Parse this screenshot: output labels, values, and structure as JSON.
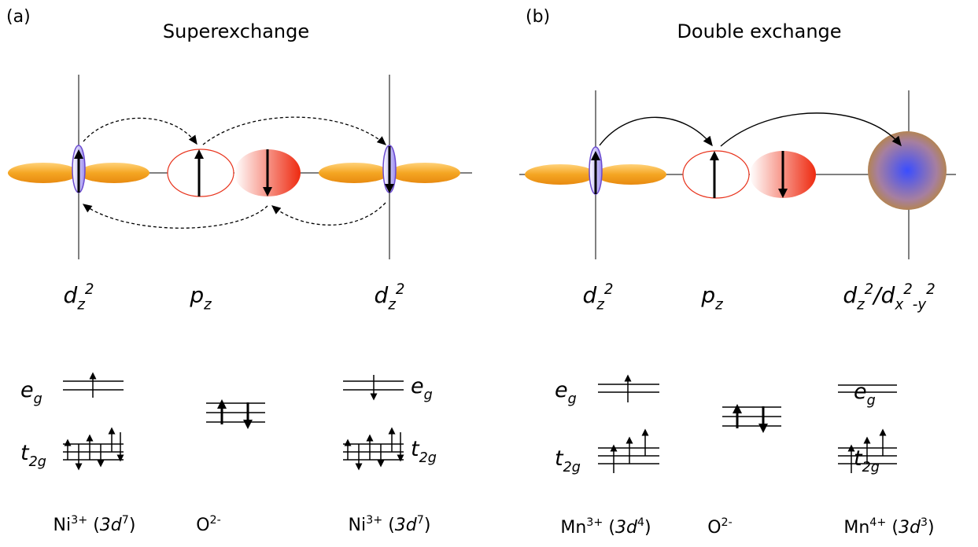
{
  "panels": [
    {
      "label": "(a)",
      "title": "Superexchange",
      "orbital_labels": [
        [
          {
            "text": "d"
          },
          {
            "sub": "z"
          },
          {
            "sup": "2"
          }
        ],
        [
          {
            "text": "p"
          },
          {
            "sub": "z"
          }
        ],
        [
          {
            "text": "d"
          },
          {
            "sub": "z"
          },
          {
            "sup": "2"
          }
        ]
      ],
      "level_labels": [
        [
          {
            "text": "e"
          },
          {
            "sub": "g"
          }
        ],
        [
          {
            "text": "t"
          },
          {
            "sub": "2g"
          }
        ],
        [
          {
            "text": "e"
          },
          {
            "sub": "g"
          }
        ],
        [
          {
            "text": "t"
          },
          {
            "sub": "2g"
          }
        ]
      ],
      "ion_labels": [
        [
          {
            "text": "Ni"
          },
          {
            "sup": "3+"
          },
          {
            "text": " ("
          },
          {
            "italic": "3d"
          },
          {
            "sup": "7"
          },
          {
            "text": ")"
          }
        ],
        [
          {
            "text": "O"
          },
          {
            "sup": "2-"
          }
        ],
        [
          {
            "text": "Ni"
          },
          {
            "sup": "3+"
          },
          {
            "text": " ("
          },
          {
            "italic": "3d"
          },
          {
            "sup": "7"
          },
          {
            "text": ")"
          }
        ]
      ]
    },
    {
      "label": "(b)",
      "title": "Double exchange",
      "orbital_labels": [
        [
          {
            "text": "d"
          },
          {
            "sub": "z"
          },
          {
            "sup": "2"
          }
        ],
        [
          {
            "text": "p"
          },
          {
            "sub": "z"
          }
        ],
        [
          {
            "text": "d"
          },
          {
            "sub": "z"
          },
          {
            "sup": "2"
          },
          {
            "text": "/d"
          },
          {
            "sub": "x"
          },
          {
            "sup": "2"
          },
          {
            "sub": "-y"
          },
          {
            "sup": "2"
          }
        ]
      ],
      "level_labels": [
        [
          {
            "text": "e"
          },
          {
            "sub": "g"
          }
        ],
        [
          {
            "text": "t"
          },
          {
            "sub": "2g"
          }
        ],
        [
          {
            "text": "e"
          },
          {
            "sub": "g"
          }
        ],
        [
          {
            "text": "t"
          },
          {
            "sub": "2g"
          }
        ]
      ],
      "ion_labels": [
        [
          {
            "text": "Mn"
          },
          {
            "sup": "3+"
          },
          {
            "text": " ("
          },
          {
            "italic": "3d"
          },
          {
            "sup": "4"
          },
          {
            "text": ")"
          }
        ],
        [
          {
            "text": "O"
          },
          {
            "sup": "2-"
          }
        ],
        [
          {
            "text": "Mn"
          },
          {
            "sup": "4+"
          },
          {
            "text": " ("
          },
          {
            "italic": "3d"
          },
          {
            "sup": "3"
          },
          {
            "text": ")"
          }
        ]
      ]
    }
  ]
}
